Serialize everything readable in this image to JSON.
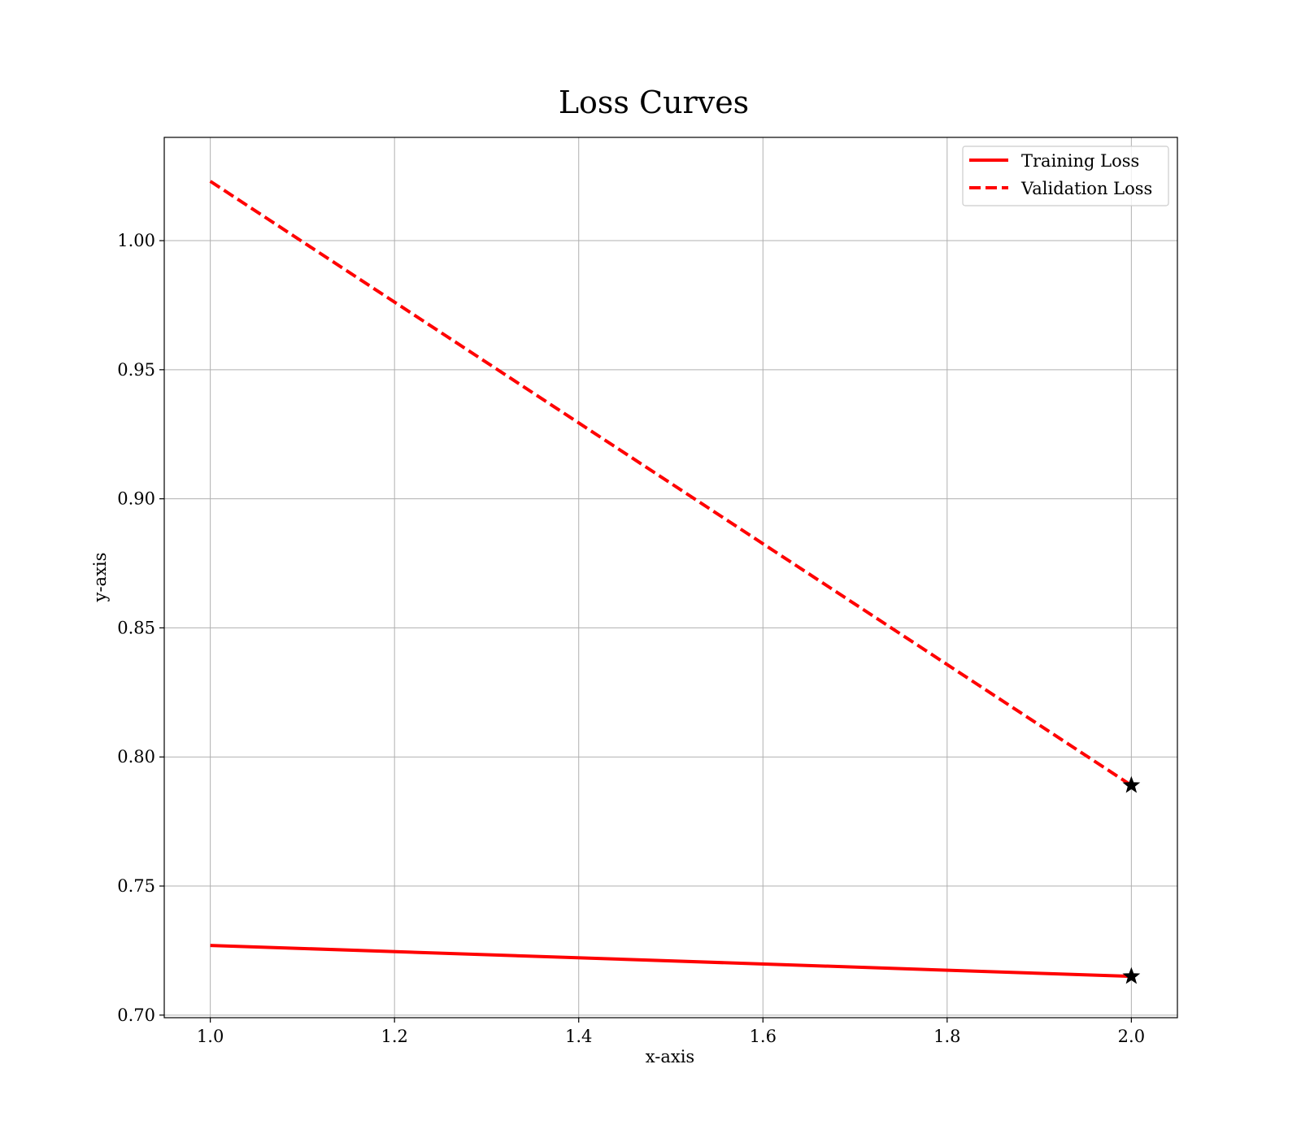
{
  "chart_data": {
    "type": "line",
    "title": "Loss Curves",
    "xlabel": "x-axis",
    "ylabel": "y-axis",
    "xlim": [
      0.95,
      2.05
    ],
    "ylim": [
      0.699,
      1.04
    ],
    "x_ticks": [
      1.0,
      1.2,
      1.4,
      1.6,
      1.8,
      2.0
    ],
    "x_tick_labels": [
      "1.0",
      "1.2",
      "1.4",
      "1.6",
      "1.8",
      "2.0"
    ],
    "y_ticks": [
      0.7,
      0.75,
      0.8,
      0.85,
      0.9,
      0.95,
      1.0
    ],
    "y_tick_labels": [
      "0.70",
      "0.75",
      "0.80",
      "0.85",
      "0.90",
      "0.95",
      "1.00"
    ],
    "grid": true,
    "legend_position": "top-right",
    "series": [
      {
        "name": "Training Loss",
        "x": [
          1,
          2
        ],
        "y": [
          0.727,
          0.715
        ],
        "color": "#ff0000",
        "line_style": "solid",
        "marker_at_last_point": "star"
      },
      {
        "name": "Validation Loss",
        "x": [
          1,
          2
        ],
        "y": [
          1.023,
          0.789
        ],
        "color": "#ff0000",
        "line_style": "dashed",
        "marker_at_last_point": "star"
      }
    ],
    "marker_color": "#000000"
  }
}
